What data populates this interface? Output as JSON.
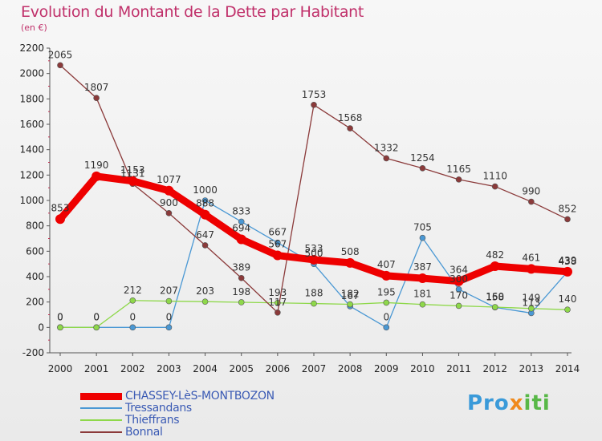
{
  "title": "Evolution du Montant de la Dette par Habitant",
  "subtitle": "(en €)",
  "brand": "Proxiti",
  "chart_data": {
    "type": "line",
    "title": "Evolution du Montant de la Dette par Habitant",
    "ylabel": "(en €)",
    "x": [
      "2000",
      "2001",
      "2002",
      "2003",
      "2004",
      "2005",
      "2006",
      "2007",
      "2008",
      "2009",
      "2010",
      "2011",
      "2012",
      "2013",
      "2014"
    ],
    "y_ticks": [
      -200,
      0,
      200,
      400,
      600,
      800,
      1000,
      1200,
      1400,
      1600,
      1800,
      2000,
      2200
    ],
    "ylim": [
      -200,
      2200
    ],
    "grid": false,
    "legend_position": "bottom-left",
    "series": [
      {
        "name": "CHASSEY-LèS-MONTBOZON",
        "color": "#ee0000",
        "values": [
          853,
          1190,
          1153,
          1077,
          888,
          694,
          567,
          533,
          508,
          407,
          387,
          364,
          482,
          461,
          439
        ]
      },
      {
        "name": "Tressandans",
        "color": "#4a98d4",
        "values": [
          0,
          0,
          0,
          0,
          1000,
          833,
          667,
          500,
          167,
          0,
          705,
          300,
          158,
          113,
          438
        ]
      },
      {
        "name": "Thieffrans",
        "color": "#8ed84a",
        "values": [
          0,
          0,
          212,
          207,
          203,
          198,
          193,
          188,
          182,
          195,
          181,
          170,
          160,
          149,
          140
        ]
      },
      {
        "name": "Bonnal",
        "color": "#8b3a3a",
        "values": [
          2065,
          1807,
          1131,
          900,
          647,
          389,
          117,
          1753,
          1568,
          1332,
          1254,
          1165,
          1110,
          990,
          852
        ]
      }
    ]
  }
}
